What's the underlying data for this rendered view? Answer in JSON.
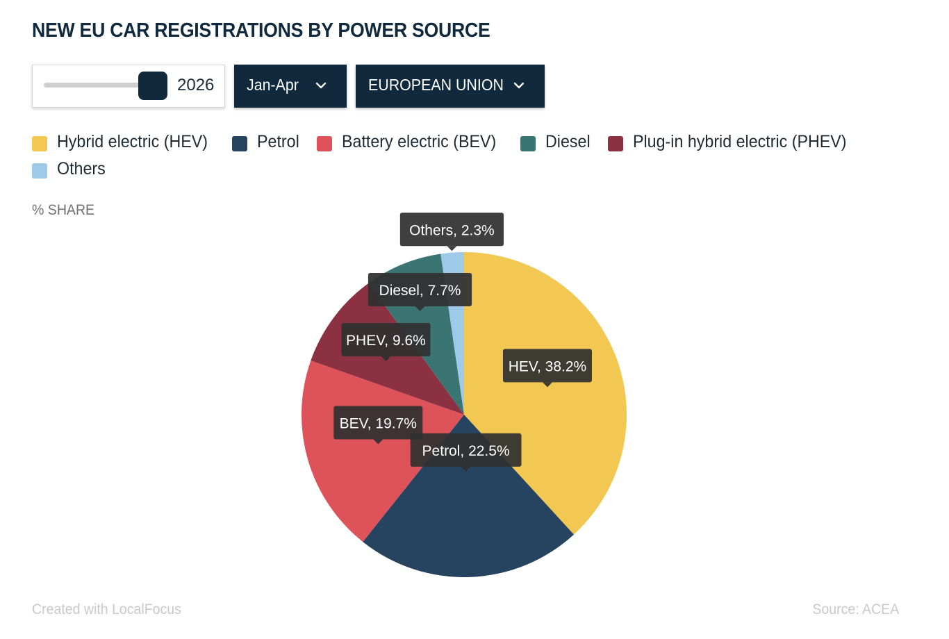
{
  "title": "NEW EU CAR REGISTRATIONS BY POWER SOURCE",
  "controls": {
    "year_value": "2026",
    "year_fraction": 1.0,
    "period_label": "Jan-Apr",
    "region_label": "EUROPEAN UNION"
  },
  "unit_label": "% SHARE",
  "footer": {
    "credit": "Created with LocalFocus",
    "source": "Source:  ACEA"
  },
  "chart_data": {
    "type": "pie",
    "legend_position": "top",
    "slices": [
      {
        "name": "Hybrid electric (HEV)",
        "short": "HEV",
        "value": 38.2,
        "label": "HEV, 38.2%",
        "color": "#f2c852"
      },
      {
        "name": "Petrol",
        "short": "Petrol",
        "value": 22.5,
        "label": "Petrol, 22.5%",
        "color": "#26445f"
      },
      {
        "name": "Battery electric (BEV)",
        "short": "BEV",
        "value": 19.7,
        "label": "BEV, 19.7%",
        "color": "#de525a"
      },
      {
        "name": "Diesel",
        "short": "Diesel",
        "value": 7.7,
        "label": "Diesel, 7.7%",
        "color": "#3a7473"
      },
      {
        "name": "Plug-in hybrid electric (PHEV)",
        "short": "PHEV",
        "value": 9.6,
        "label": "PHEV, 9.6%",
        "color": "#8c3142"
      },
      {
        "name": "Others",
        "short": "Others",
        "value": 2.3,
        "label": "Others, 2.3%",
        "color": "#9fc9e8"
      }
    ],
    "draw_order": [
      "HEV",
      "Petrol",
      "BEV",
      "PHEV",
      "Diesel",
      "Others"
    ]
  }
}
